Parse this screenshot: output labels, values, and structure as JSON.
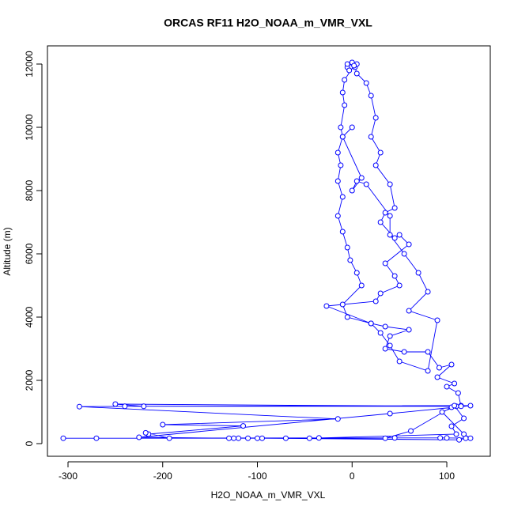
{
  "chart_data": {
    "type": "scatter-line",
    "title": "ORCAS RF11 H2O_NOAA_m_VMR_VXL",
    "x_label": "H2O_NOAA_m_VMR_VXL",
    "y_label": "Altitude (m)",
    "color": "#0000ff",
    "xlim": [
      -321.7,
      145.9
    ],
    "ylim": [
      -400,
      12575
    ],
    "xticks": [
      -300,
      -200,
      -100,
      0,
      100
    ],
    "yticks": [
      0,
      2000,
      4000,
      6000,
      8000,
      10000,
      12000
    ],
    "x": [
      120,
      113,
      -95,
      -120,
      -130,
      -110,
      -270,
      -305,
      -35,
      45,
      93,
      100,
      125,
      118,
      95,
      110,
      -250,
      -220,
      -288,
      -15,
      -200,
      -115,
      -215,
      -218,
      -193,
      -70,
      -100,
      35,
      62,
      105,
      115,
      125,
      40,
      -225,
      -125,
      -45,
      110,
      105,
      118,
      108,
      -240,
      115,
      112,
      100,
      108,
      90,
      105,
      92,
      80,
      55,
      35,
      40,
      60,
      35,
      20,
      -27,
      25,
      30,
      50,
      45,
      35,
      60,
      50,
      45,
      30,
      35,
      45,
      40,
      25,
      30,
      20,
      25,
      20,
      15,
      5,
      3,
      5,
      0,
      -5,
      -3,
      -5,
      2,
      -8,
      -10,
      -8,
      -12,
      -10,
      -15,
      -12,
      -15,
      -10,
      -15,
      -10,
      -5,
      -2,
      5,
      10,
      -10,
      -5,
      20,
      30,
      40,
      50,
      80,
      90,
      60,
      80,
      70,
      55,
      40,
      40,
      15,
      5,
      0,
      10,
      -10,
      0
    ],
    "y": [
      170,
      120,
      170,
      170,
      170,
      170,
      170,
      170,
      180,
      180,
      180,
      180,
      170,
      300,
      1000,
      1180,
      1250,
      1180,
      1170,
      780,
      600,
      560,
      300,
      340,
      170,
      170,
      170,
      170,
      400,
      1150,
      1200,
      1200,
      950,
      200,
      170,
      170,
      300,
      550,
      800,
      1200,
      1180,
      1180,
      1600,
      1800,
      1900,
      2100,
      2500,
      2400,
      2900,
      2900,
      3000,
      3400,
      3600,
      3700,
      3800,
      4350,
      4500,
      4750,
      5000,
      5300,
      5700,
      6300,
      6600,
      6500,
      7000,
      7300,
      7450,
      8200,
      8800,
      9200,
      9700,
      10300,
      11000,
      11400,
      11700,
      11900,
      12000,
      12050,
      11900,
      11800,
      12000,
      11950,
      11500,
      11100,
      10700,
      10000,
      9700,
      9200,
      8800,
      8300,
      7800,
      7200,
      6700,
      6200,
      5800,
      5400,
      5000,
      4400,
      4000,
      3800,
      3500,
      3100,
      2600,
      2300,
      3900,
      4200,
      4800,
      5400,
      6000,
      6600,
      7200,
      8200,
      8300,
      8000,
      8400,
      9700,
      10000
    ]
  }
}
